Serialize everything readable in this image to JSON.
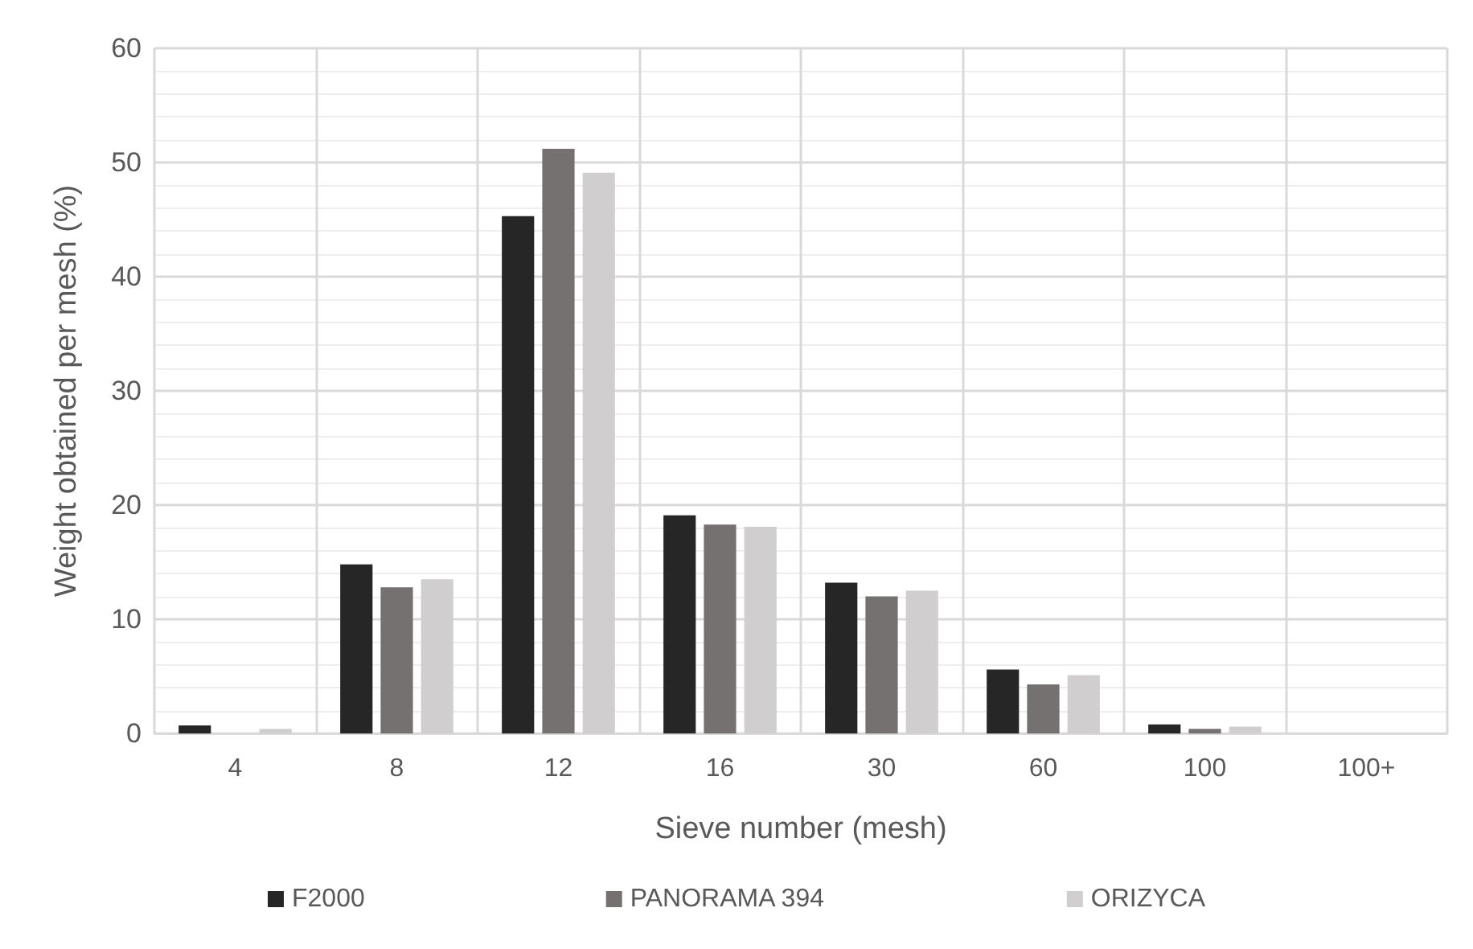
{
  "chart_data": {
    "type": "bar",
    "xlabel": "Sieve number (mesh)",
    "ylabel": "Weight obtained per mesh (%)",
    "categories": [
      "4",
      "8",
      "12",
      "16",
      "30",
      "60",
      "100",
      "100+"
    ],
    "series": [
      {
        "name": "F2000",
        "color": "#262626",
        "values": [
          0.7,
          14.8,
          45.3,
          19.1,
          13.2,
          5.6,
          0.8,
          0
        ]
      },
      {
        "name": "PANORAMA 394",
        "color": "#767171",
        "values": [
          0,
          12.8,
          51.2,
          18.3,
          12.0,
          4.3,
          0.4,
          0
        ]
      },
      {
        "name": "ORIZYCA",
        "color": "#d0cece",
        "values": [
          0.4,
          13.5,
          49.1,
          18.1,
          12.5,
          5.1,
          0.6,
          0
        ]
      }
    ],
    "ylim": [
      0,
      60
    ],
    "yticks": [
      0,
      10,
      20,
      30,
      40,
      50,
      60
    ],
    "grid": true,
    "legend": "bottom"
  }
}
